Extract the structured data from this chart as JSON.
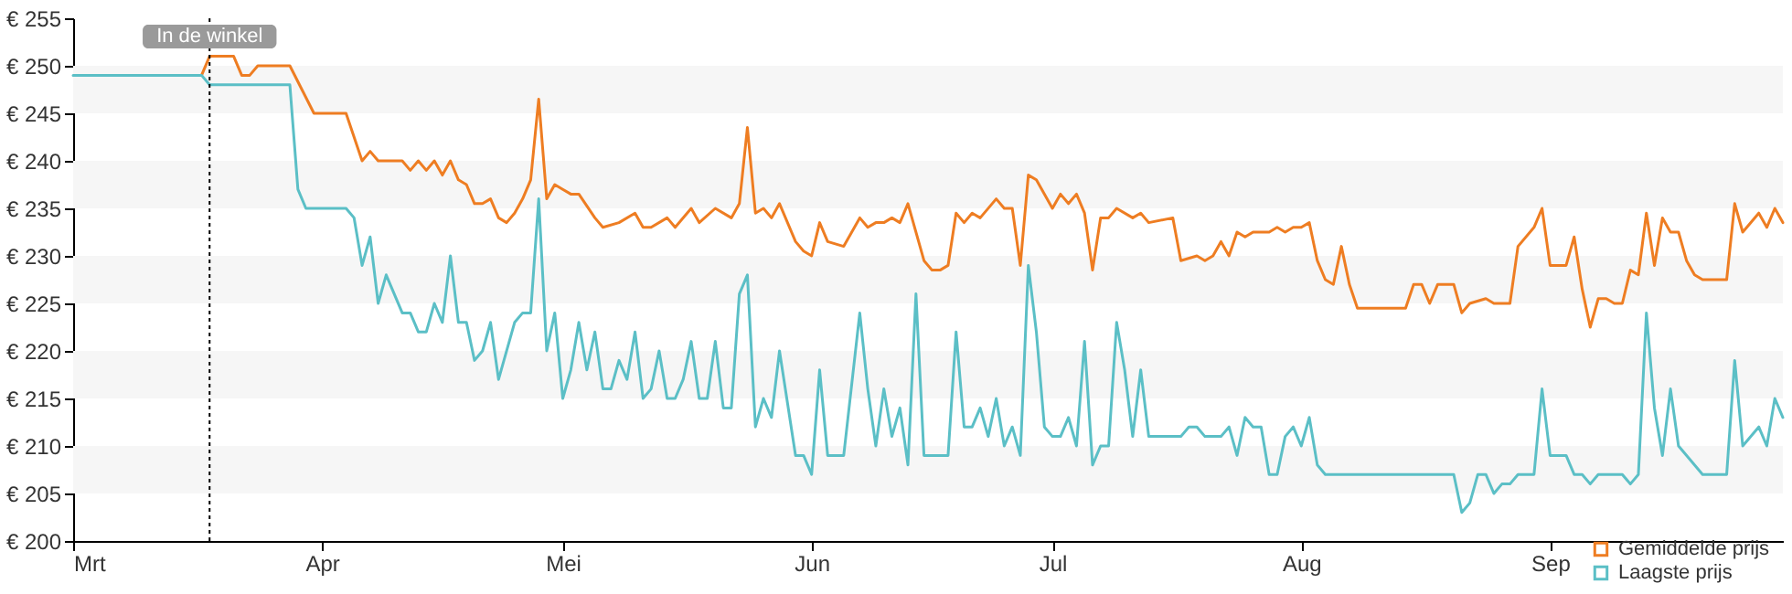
{
  "chart_data": {
    "type": "line",
    "xlim": [
      "--03-01",
      "--09-30"
    ],
    "xticks": [
      {
        "value": "--03-01",
        "label": "Mrt"
      },
      {
        "value": "--04-01",
        "label": "Apr"
      },
      {
        "value": "--05-01",
        "label": "Mei"
      },
      {
        "value": "--06-01",
        "label": "Jun"
      },
      {
        "value": "--07-01",
        "label": "Jul"
      },
      {
        "value": "--08-01",
        "label": "Aug"
      },
      {
        "value": "--09-01",
        "label": "Sep"
      }
    ],
    "ylim": [
      200,
      255
    ],
    "yticks": [
      {
        "value": 200,
        "label": "€ 200"
      },
      {
        "value": 205,
        "label": "€ 205"
      },
      {
        "value": 210,
        "label": "€ 210"
      },
      {
        "value": 215,
        "label": "€ 215"
      },
      {
        "value": 220,
        "label": "€ 220"
      },
      {
        "value": 225,
        "label": "€ 225"
      },
      {
        "value": 230,
        "label": "€ 230"
      },
      {
        "value": 235,
        "label": "€ 235"
      },
      {
        "value": 240,
        "label": "€ 240"
      },
      {
        "value": 245,
        "label": "€ 245"
      },
      {
        "value": 250,
        "label": "€ 250"
      },
      {
        "value": 255,
        "label": "€ 255"
      }
    ],
    "bands": [
      {
        "axis": "y",
        "from": 205,
        "to": 210,
        "color": "#f6f6f6"
      },
      {
        "axis": "y",
        "from": 215,
        "to": 220,
        "color": "#f6f6f6"
      },
      {
        "axis": "y",
        "from": 225,
        "to": 230,
        "color": "#f6f6f6"
      },
      {
        "axis": "y",
        "from": 235,
        "to": 240,
        "color": "#f6f6f6"
      },
      {
        "axis": "y",
        "from": 245,
        "to": 250,
        "color": "#f6f6f6"
      }
    ],
    "legend": "bottom right",
    "line_style": "solid",
    "marker": "none",
    "ref_lines": [
      {
        "axis": "x",
        "value": "--03-18",
        "label": "In de winkel",
        "line_style": "dotted",
        "color": "#000000"
      }
    ],
    "series": [
      {
        "name": "Gemiddelde prijs",
        "color": "#ee7d22",
        "x": [
          "--03-17",
          "--03-18",
          "--03-19",
          "--03-21",
          "--03-22",
          "--03-23",
          "--03-24",
          "--03-28",
          "--03-31",
          "--04-04",
          "--04-06",
          "--04-07",
          "--04-08",
          "--04-09",
          "--04-11",
          "--04-12",
          "--04-13",
          "--04-14",
          "--04-15",
          "--04-16",
          "--04-17",
          "--04-18",
          "--04-19",
          "--04-20",
          "--04-21",
          "--04-22",
          "--04-23",
          "--04-24",
          "--04-25",
          "--04-26",
          "--04-27",
          "--04-28",
          "--04-29",
          "--04-30",
          "--05-01",
          "--05-02",
          "--05-03",
          "--05-05",
          "--05-06",
          "--05-08",
          "--05-10",
          "--05-11",
          "--05-12",
          "--05-14",
          "--05-15",
          "--05-17",
          "--05-18",
          "--05-20",
          "--05-22",
          "--05-23",
          "--05-24",
          "--05-25",
          "--05-26",
          "--05-27",
          "--05-28",
          "--05-30",
          "--05-31",
          "--06-01",
          "--06-02",
          "--06-03",
          "--06-05",
          "--06-07",
          "--06-08",
          "--06-09",
          "--06-10",
          "--06-11",
          "--06-12",
          "--06-13",
          "--06-15",
          "--06-16",
          "--06-17",
          "--06-18",
          "--06-19",
          "--06-20",
          "--06-21",
          "--06-22",
          "--06-24",
          "--06-25",
          "--06-26",
          "--06-27",
          "--06-28",
          "--06-29",
          "--07-01",
          "--07-02",
          "--07-03",
          "--07-04",
          "--07-05",
          "--07-06",
          "--07-07",
          "--07-08",
          "--07-09",
          "--07-11",
          "--07-12",
          "--07-13",
          "--07-16",
          "--07-17",
          "--07-19",
          "--07-20",
          "--07-21",
          "--07-22",
          "--07-23",
          "--07-24",
          "--07-25",
          "--07-26",
          "--07-28",
          "--07-29",
          "--07-30",
          "--07-31",
          "--08-01",
          "--08-02",
          "--08-03",
          "--08-04",
          "--08-05",
          "--08-06",
          "--08-07",
          "--08-08",
          "--08-09",
          "--08-14",
          "--08-15",
          "--08-16",
          "--08-17",
          "--08-18",
          "--08-20",
          "--08-21",
          "--08-22",
          "--08-24",
          "--08-25",
          "--08-27",
          "--08-28",
          "--08-30",
          "--08-31",
          "--09-01",
          "--09-03",
          "--09-04",
          "--09-05",
          "--09-06",
          "--09-07",
          "--09-08",
          "--09-09",
          "--09-10",
          "--09-11",
          "--09-12",
          "--09-13",
          "--09-14",
          "--09-15",
          "--09-16",
          "--09-17",
          "--09-18",
          "--09-19",
          "--09-20",
          "--09-23",
          "--09-24",
          "--09-25",
          "--09-27",
          "--09-28",
          "--09-29",
          "--09-30"
        ],
        "values": [
          249,
          251,
          251,
          251,
          249,
          249,
          250,
          250,
          245,
          245,
          240,
          241,
          240,
          240,
          240,
          239,
          240,
          239,
          240,
          238.5,
          240,
          238,
          237.5,
          235.5,
          235.5,
          236,
          234,
          233.5,
          234.5,
          236,
          238,
          246.5,
          236,
          237.5,
          237,
          236.5,
          236.5,
          234,
          233,
          233.5,
          234.5,
          233,
          233,
          234,
          233,
          235,
          233.5,
          235,
          234,
          235.5,
          243.5,
          234.5,
          235,
          234,
          235.5,
          231.5,
          230.5,
          230,
          233.5,
          231.5,
          231,
          234,
          233,
          233.5,
          233.5,
          234,
          233.5,
          235.5,
          229.5,
          228.5,
          228.5,
          229,
          234.5,
          233.5,
          234.5,
          234,
          236,
          235,
          235,
          229,
          238.5,
          238,
          235,
          236.5,
          235.5,
          236.5,
          234.5,
          228.5,
          234,
          234,
          235,
          234,
          234.5,
          233.5,
          234,
          229.5,
          230,
          229.5,
          230,
          231.5,
          230,
          232.5,
          232,
          232.5,
          232.5,
          233,
          232.5,
          233,
          233,
          233.5,
          229.5,
          227.5,
          227,
          231,
          227,
          224.5,
          224.5,
          224.5,
          227,
          227,
          225,
          227,
          227,
          224,
          225,
          225.5,
          225,
          225,
          231,
          233,
          235,
          229,
          229,
          232,
          226.5,
          222.5,
          225.5,
          225.5,
          225,
          225,
          228.5,
          228,
          234.5,
          229,
          234,
          232.5,
          232.5,
          229.5,
          228,
          227.5,
          227.5,
          235.5,
          232.5,
          234.5,
          233,
          235,
          233.5
        ]
      },
      {
        "name": "Laagste prijs",
        "color": "#5bbfc6",
        "x": [
          "--03-01",
          "--03-17",
          "--03-18",
          "--03-28",
          "--03-29",
          "--03-30",
          "--04-04",
          "--04-05",
          "--04-06",
          "--04-07",
          "--04-08",
          "--04-09",
          "--04-11",
          "--04-12",
          "--04-13",
          "--04-14",
          "--04-15",
          "--04-16",
          "--04-17",
          "--04-18",
          "--04-19",
          "--04-20",
          "--04-21",
          "--04-22",
          "--04-23",
          "--04-25",
          "--04-26",
          "--04-27",
          "--04-28",
          "--04-29",
          "--04-30",
          "--05-01",
          "--05-02",
          "--05-03",
          "--05-04",
          "--05-05",
          "--05-06",
          "--05-07",
          "--05-08",
          "--05-09",
          "--05-10",
          "--05-11",
          "--05-12",
          "--05-13",
          "--05-14",
          "--05-15",
          "--05-16",
          "--05-17",
          "--05-18",
          "--05-19",
          "--05-20",
          "--05-21",
          "--05-22",
          "--05-23",
          "--05-24",
          "--05-25",
          "--05-26",
          "--05-27",
          "--05-28",
          "--05-30",
          "--05-31",
          "--06-01",
          "--06-02",
          "--06-03",
          "--06-05",
          "--06-07",
          "--06-08",
          "--06-09",
          "--06-10",
          "--06-11",
          "--06-12",
          "--06-13",
          "--06-14",
          "--06-15",
          "--06-18",
          "--06-19",
          "--06-20",
          "--06-21",
          "--06-22",
          "--06-23",
          "--06-24",
          "--06-25",
          "--06-26",
          "--06-27",
          "--06-28",
          "--06-29",
          "--06-30",
          "--07-01",
          "--07-02",
          "--07-03",
          "--07-04",
          "--07-05",
          "--07-06",
          "--07-07",
          "--07-08",
          "--07-09",
          "--07-10",
          "--07-11",
          "--07-12",
          "--07-13",
          "--07-17",
          "--07-18",
          "--07-19",
          "--07-20",
          "--07-22",
          "--07-23",
          "--07-24",
          "--07-25",
          "--07-26",
          "--07-27",
          "--07-28",
          "--07-29",
          "--07-30",
          "--07-31",
          "--08-01",
          "--08-02",
          "--08-03",
          "--08-04",
          "--08-20",
          "--08-21",
          "--08-22",
          "--08-23",
          "--08-24",
          "--08-25",
          "--08-26",
          "--08-27",
          "--08-28",
          "--08-30",
          "--08-31",
          "--09-01",
          "--09-03",
          "--09-04",
          "--09-05",
          "--09-06",
          "--09-07",
          "--09-10",
          "--09-11",
          "--09-12",
          "--09-13",
          "--09-14",
          "--09-15",
          "--09-16",
          "--09-17",
          "--09-20",
          "--09-23",
          "--09-24",
          "--09-25",
          "--09-27",
          "--09-28",
          "--09-29",
          "--09-30"
        ],
        "values": [
          249,
          249,
          248,
          248,
          237,
          235,
          235,
          234,
          229,
          232,
          225,
          228,
          224,
          224,
          222,
          222,
          225,
          223,
          230,
          223,
          223,
          219,
          220,
          223,
          217,
          223,
          224,
          224,
          236,
          220,
          224,
          215,
          218,
          223,
          218,
          222,
          216,
          216,
          219,
          217,
          222,
          215,
          216,
          220,
          215,
          215,
          217,
          221,
          215,
          215,
          221,
          214,
          214,
          226,
          228,
          212,
          215,
          213,
          220,
          209,
          209,
          207,
          218,
          209,
          209,
          224,
          216,
          210,
          216,
          211,
          214,
          208,
          226,
          209,
          209,
          222,
          212,
          212,
          214,
          211,
          215,
          210,
          212,
          209,
          229,
          222,
          212,
          211,
          211,
          213,
          210,
          221,
          208,
          210,
          210,
          223,
          218,
          211,
          218,
          211,
          211,
          212,
          212,
          211,
          211,
          212,
          209,
          213,
          212,
          212,
          207,
          207,
          211,
          212,
          210,
          213,
          208,
          207,
          207,
          203,
          204,
          207,
          207,
          205,
          206,
          206,
          207,
          207,
          216,
          209,
          209,
          207,
          207,
          206,
          207,
          207,
          206,
          207,
          224,
          214,
          209,
          216,
          210,
          207,
          207,
          219,
          210,
          212,
          210,
          215,
          213
        ]
      }
    ]
  }
}
